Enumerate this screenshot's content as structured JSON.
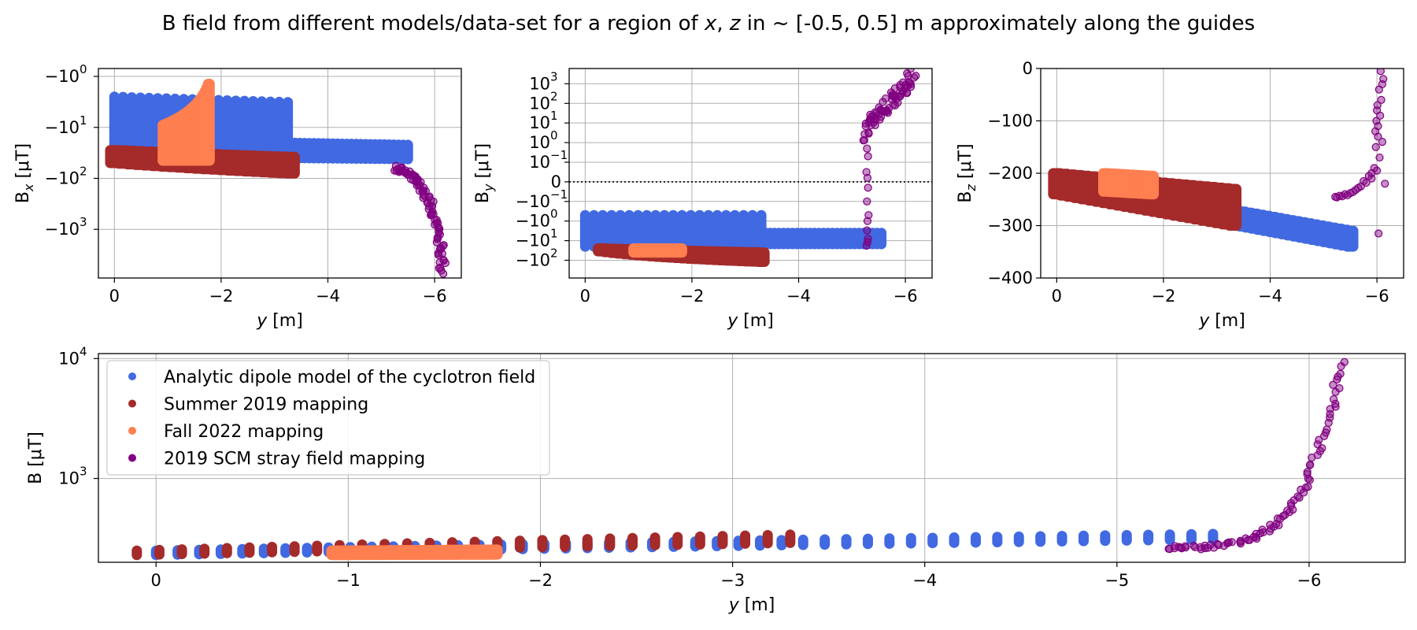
{
  "figure": {
    "title_pre": "B field from different models/data-set for a region of ",
    "title_x": "x",
    "title_mid": ", ",
    "title_z": "z",
    "title_post": " in ~ [-0.5, 0.5] m approximately along the guides"
  },
  "colors": {
    "analytic": "#4169E1",
    "summer2019": "#A52A2A",
    "fall2022": "#FF7F50",
    "scm2019": "#800080"
  },
  "chart_data": [
    {
      "id": "bx",
      "type": "scatter",
      "ylabel_pre": "B",
      "ylabel_sub": "x",
      "ylabel_post": " [μT]",
      "xlabel_var": "y",
      "xlabel_unit": " [m]",
      "xscale": "linear",
      "yscale": "symlog",
      "xlim": [
        0.3,
        -6.5
      ],
      "ylim": [
        -9000,
        -0.7
      ],
      "xticks": [
        0,
        -2,
        -4,
        -6
      ],
      "xticklabels": [
        "0",
        "−2",
        "−4",
        "−6"
      ],
      "yticks": [
        -1,
        -10,
        -100,
        -1000
      ],
      "yticklabels_base": [
        "−10",
        "−10",
        "−10",
        "−10"
      ],
      "yticklabels_exp": [
        "0",
        "1",
        "2",
        "3"
      ],
      "grid": true,
      "series": [
        {
          "key": "analytic",
          "segments": [
            {
              "x": [
                0,
                -3.25
              ],
              "y_top": [
                -2.5,
                -3.2
              ],
              "y_bottom": [
                -35,
                -30
              ],
              "columns": 21,
              "style": "bars"
            },
            {
              "x": [
                -3.3,
                -5.5
              ],
              "y_top": [
                -20,
                -22
              ],
              "y_bottom": [
                -40,
                -42
              ],
              "columns": 26,
              "style": "bars"
            }
          ]
        },
        {
          "key": "summer2019",
          "segments": [
            {
              "x": [
                0,
                -3.3
              ],
              "y_top": [
                -28,
                -38
              ],
              "y_bottom": [
                -50,
                -80
              ],
              "columns": 22,
              "style": "band"
            }
          ]
        },
        {
          "key": "fall2022",
          "segments": [
            {
              "x": [
                -0.92,
                -1.77
              ],
              "y_top": [
                -9,
                -1.4
              ],
              "y_bottom": [
                -45,
                -45
              ],
              "columns": 30,
              "style": "band"
            }
          ]
        },
        {
          "key": "scm2019",
          "curve": {
            "x": [
              -5.25,
              -5.45,
              -5.65,
              -5.8,
              -5.95,
              -6.05,
              -6.12,
              -6.15
            ],
            "y": [
              -60,
              -75,
              -110,
              -180,
              -350,
              -900,
              -2500,
              -6500
            ],
            "spread": 0.12,
            "points": 90
          }
        }
      ]
    },
    {
      "id": "by",
      "type": "scatter",
      "ylabel_pre": "B",
      "ylabel_sub": "y",
      "ylabel_post": " [μT]",
      "xlabel_var": "y",
      "xlabel_unit": " [m]",
      "xscale": "linear",
      "yscale": "symlog",
      "xlim": [
        0.3,
        -6.5
      ],
      "ylim": [
        -800,
        6000
      ],
      "xticks": [
        0,
        -2,
        -4,
        -6
      ],
      "xticklabels": [
        "0",
        "−2",
        "−4",
        "−6"
      ],
      "yticks": [
        1000,
        100,
        10,
        1,
        0.1,
        0,
        -0.1,
        -1,
        -10,
        -100
      ],
      "yticklabels_base": [
        "10",
        "10",
        "10",
        "10",
        "10",
        "0",
        "−10",
        "−10",
        "−10",
        "−10"
      ],
      "yticklabels_exp": [
        "3",
        "2",
        "1",
        "0",
        "−1",
        "",
        "−1",
        "0",
        "1",
        "2"
      ],
      "zero_line": true,
      "grid": true,
      "series": [
        {
          "key": "analytic",
          "segments": [
            {
              "x": [
                0,
                -3.3
              ],
              "y_top": [
                -0.5,
                -0.5
              ],
              "y_bottom": [
                -20,
                -20
              ],
              "columns": 21,
              "style": "bars"
            },
            {
              "x": [
                -3.3,
                -5.55
              ],
              "y_top": [
                -4,
                -4
              ],
              "y_bottom": [
                -15,
                -15
              ],
              "columns": 28,
              "style": "bars"
            }
          ]
        },
        {
          "key": "summer2019",
          "segments": [
            {
              "x": [
                -0.3,
                -3.3
              ],
              "y_top": [
                -25,
                -40
              ],
              "y_bottom": [
                -35,
                -120
              ],
              "columns": 26,
              "style": "band"
            }
          ]
        },
        {
          "key": "fall2022",
          "segments": [
            {
              "x": [
                -0.95,
                -1.77
              ],
              "y_top": [
                -25,
                -25
              ],
              "y_bottom": [
                -40,
                -40
              ],
              "columns": 10,
              "style": "band"
            }
          ]
        },
        {
          "key": "scm2019",
          "curve": {
            "x": [
              -5.25,
              -5.35,
              -5.5,
              -5.7,
              -5.85,
              -6.0,
              -6.15
            ],
            "y": [
              2,
              15,
              40,
              100,
              250,
              700,
              3000
            ],
            "spread": 0.3,
            "points": 70
          }
        },
        {
          "key": "scm2019",
          "scatter": {
            "x": [
              -5.28,
              -5.3,
              -5.27,
              -5.29,
              -5.3,
              -5.28,
              -5.31,
              -5.29,
              -5.28,
              -5.3,
              -5.29,
              -5.27
            ],
            "y": [
              0.5,
              0.2,
              0.05,
              0.02,
              -0.03,
              -0.1,
              -0.5,
              -1,
              -3,
              -8,
              -12,
              -18
            ]
          }
        }
      ]
    },
    {
      "id": "bz",
      "type": "scatter",
      "ylabel_pre": "B",
      "ylabel_sub": "z",
      "ylabel_post": " [μT]",
      "xlabel_var": "y",
      "xlabel_unit": " [m]",
      "xscale": "linear",
      "yscale": "linear",
      "xlim": [
        0.3,
        -6.5
      ],
      "ylim": [
        -400,
        0
      ],
      "xticks": [
        0,
        -2,
        -4,
        -6
      ],
      "xticklabels": [
        "0",
        "−2",
        "−4",
        "−6"
      ],
      "yticks": [
        0,
        -100,
        -200,
        -300,
        -400
      ],
      "yticklabels_base": [
        "0",
        "−100",
        "−200",
        "−300",
        "−400"
      ],
      "yticklabels_exp": [
        "",
        "",
        "",
        "",
        ""
      ],
      "grid": true,
      "series": [
        {
          "key": "analytic",
          "segments": [
            {
              "x": [
                0,
                -5.5
              ],
              "y_top": [
                -210,
                -310
              ],
              "y_bottom": [
                -235,
                -340
              ],
              "columns": 50,
              "style": "band"
            }
          ]
        },
        {
          "key": "summer2019",
          "segments": [
            {
              "x": [
                0,
                -3.3
              ],
              "y_top": [
                -200,
                -230
              ],
              "y_bottom": [
                -240,
                -300
              ],
              "columns": 26,
              "style": "band"
            }
          ]
        },
        {
          "key": "fall2022",
          "segments": [
            {
              "x": [
                -0.92,
                -1.77
              ],
              "y_top": [
                -200,
                -205
              ],
              "y_bottom": [
                -235,
                -240
              ],
              "columns": 10,
              "style": "band"
            }
          ]
        },
        {
          "key": "scm2019",
          "scatter": {
            "x": [
              -5.22,
              -5.3,
              -5.4,
              -5.5,
              -5.6,
              -5.7,
              -5.8,
              -5.9,
              -6.0,
              -6.05,
              -6.1,
              -6.15,
              -5.95,
              -5.85,
              -5.75,
              -5.65,
              -5.55,
              -5.45,
              -5.35,
              -5.25,
              -5.98,
              -6.02,
              -6.08,
              -6.12,
              -6.0,
              -5.9,
              -6.04,
              -6.07,
              -6.1,
              -5.97,
              -6.02,
              -6.06,
              -6.01,
              -5.99,
              -6.03
            ],
            "y": [
              -245,
              -243,
              -240,
              -238,
              -232,
              -225,
              -218,
              -210,
              -195,
              -170,
              -140,
              -220,
              -190,
              -205,
              -215,
              -228,
              -236,
              -242,
              -244,
              -246,
              -150,
              -110,
              -60,
              -20,
              -80,
              -200,
              -40,
              -5,
              -30,
              -120,
              -130,
              -90,
              -70,
              -100,
              -315
            ]
          }
        }
      ]
    },
    {
      "id": "b",
      "type": "scatter",
      "ylabel_pre": "B",
      "ylabel_sub": "",
      "ylabel_post": " [μT]",
      "xlabel_var": "y",
      "xlabel_unit": " [m]",
      "xscale": "linear",
      "yscale": "log",
      "xlim": [
        0.3,
        -6.5
      ],
      "ylim": [
        200,
        11000
      ],
      "xticks": [
        0,
        -1,
        -2,
        -3,
        -4,
        -5,
        -6
      ],
      "xticklabels": [
        "0",
        "−1",
        "−2",
        "−3",
        "−4",
        "−5",
        "−6"
      ],
      "yticks": [
        1000,
        10000
      ],
      "yticklabels_base": [
        "10",
        "10"
      ],
      "yticklabels_exp": [
        "3",
        "4"
      ],
      "grid": true,
      "series": [
        {
          "key": "analytic",
          "segments": [
            {
              "x": [
                0,
                -5.5
              ],
              "y_top": [
                250,
                345
              ],
              "y_bottom": [
                230,
                310
              ],
              "columns": 50,
              "style": "bars"
            }
          ]
        },
        {
          "key": "summer2019",
          "segments": [
            {
              "x": [
                0.1,
                -3.3
              ],
              "y_top": [
                250,
                340
              ],
              "y_bottom": [
                230,
                290
              ],
              "columns": 30,
              "style": "bars"
            }
          ]
        },
        {
          "key": "fall2022",
          "segments": [
            {
              "x": [
                -0.92,
                -1.77
              ],
              "y_top": [
                250,
                255
              ],
              "y_bottom": [
                230,
                232
              ],
              "columns": 60,
              "style": "band"
            }
          ]
        },
        {
          "key": "scm2019",
          "curve": {
            "x": [
              -5.25,
              -5.4,
              -5.55,
              -5.7,
              -5.8,
              -5.9,
              -5.98,
              -6.05,
              -6.12,
              -6.17
            ],
            "y": [
              265,
              265,
              275,
              310,
              380,
              550,
              900,
              1800,
              4000,
              9000
            ],
            "spread": 0.08,
            "points": 90
          }
        }
      ]
    }
  ],
  "legend": {
    "placement": "upper-left",
    "entries": [
      {
        "key": "analytic",
        "label": "Analytic dipole model of the cyclotron field"
      },
      {
        "key": "summer2019",
        "label": "Summer 2019 mapping"
      },
      {
        "key": "fall2022",
        "label": "Fall 2022 mapping"
      },
      {
        "key": "scm2019",
        "label": "2019 SCM stray field mapping"
      }
    ]
  }
}
